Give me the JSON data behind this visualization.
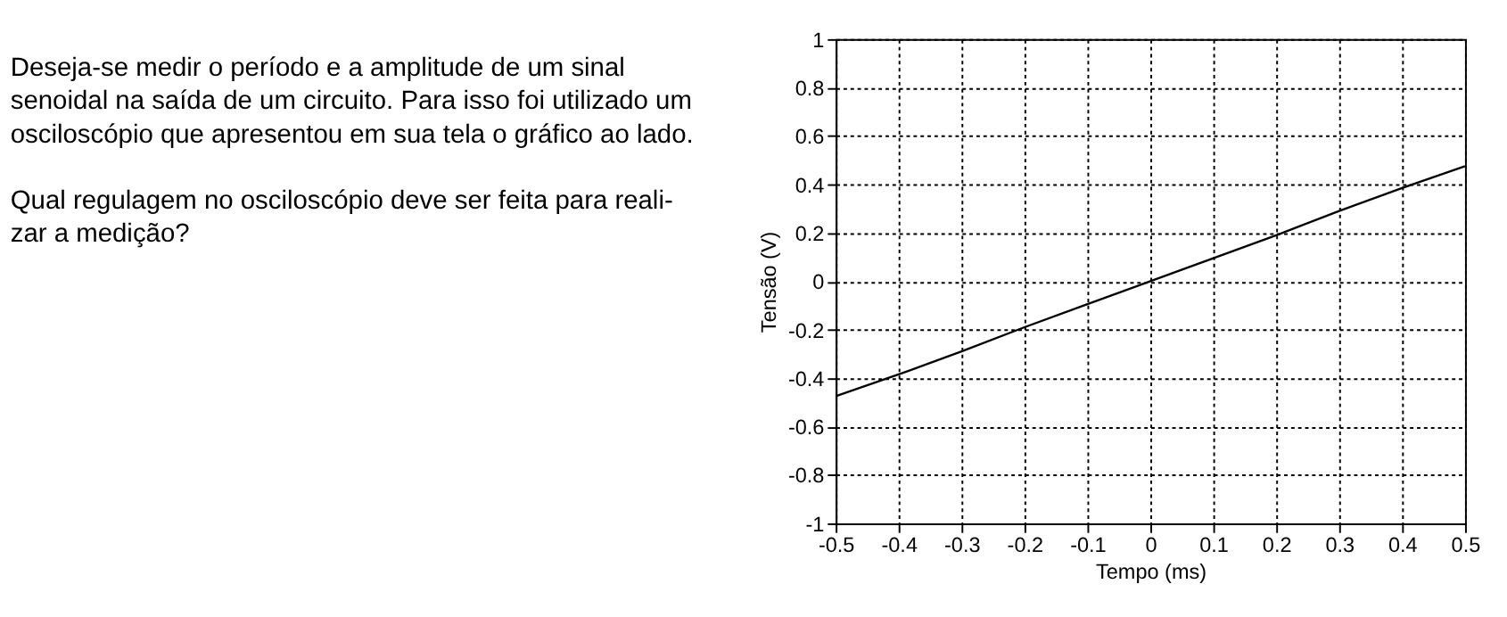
{
  "chart_data": {
    "type": "line",
    "xlabel": "Tempo (ms)",
    "ylabel": "Tensão (V)",
    "x": [
      -0.5,
      -0.4,
      -0.3,
      -0.2,
      -0.1,
      0,
      0.1,
      0.2,
      0.3,
      0.4,
      0.5
    ],
    "series": [
      {
        "color": "#000000",
        "values": [
          -0.475,
          -0.385,
          -0.29,
          -0.19,
          -0.095,
          0,
          0.095,
          0.19,
          0.29,
          0.385,
          0.475
        ]
      }
    ],
    "xlim": [
      -0.5,
      0.5
    ],
    "xticks": [
      -0.5,
      -0.4,
      -0.3,
      -0.2,
      -0.1,
      0,
      0.1,
      0.2,
      0.3,
      0.4,
      0.5
    ],
    "ylim": [
      -1,
      1
    ],
    "yticks": [
      -1,
      -0.8,
      -0.6,
      -0.4,
      -0.2,
      0,
      0.2,
      0.4,
      0.6,
      0.8,
      1
    ],
    "grid": true,
    "line_style": "solid",
    "marker": "none",
    "annotations": [
      "Deseja-se medir o período e a amplitude de um sinal\nsenoidal na saída de um circuito. Para isso foi utilizado um\nosciloscópio que apresentou em sua tela o gráfico ao lado.",
      "Qual regulagem no osciloscópio deve ser feita para reali-\nzar a medição?"
    ]
  }
}
